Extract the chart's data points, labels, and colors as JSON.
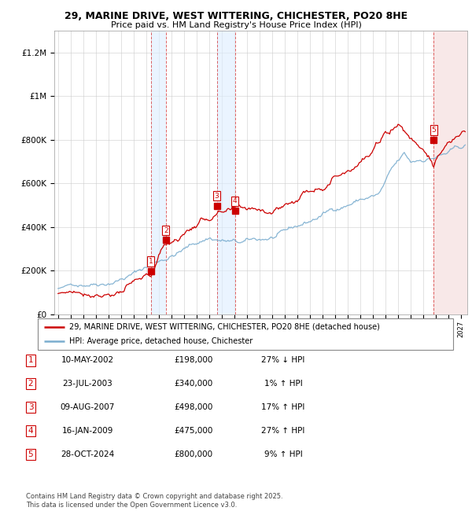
{
  "title1": "29, MARINE DRIVE, WEST WITTERING, CHICHESTER, PO20 8HE",
  "title2": "Price paid vs. HM Land Registry's House Price Index (HPI)",
  "ylabel_ticks": [
    "£0",
    "£200K",
    "£400K",
    "£600K",
    "£800K",
    "£1M",
    "£1.2M"
  ],
  "ytick_vals": [
    0,
    200000,
    400000,
    600000,
    800000,
    1000000,
    1200000
  ],
  "ylim": [
    0,
    1300000
  ],
  "xlim_start": 1994.7,
  "xlim_end": 2027.5,
  "sale_dates": [
    2002.36,
    2003.56,
    2007.61,
    2009.04,
    2024.83
  ],
  "sale_prices": [
    198000,
    340000,
    498000,
    475000,
    800000
  ],
  "sale_labels": [
    "1",
    "2",
    "3",
    "4",
    "5"
  ],
  "legend_line1": "29, MARINE DRIVE, WEST WITTERING, CHICHESTER, PO20 8HE (detached house)",
  "legend_line2": "HPI: Average price, detached house, Chichester",
  "table_data": [
    [
      "1",
      "10-MAY-2002",
      "£198,000",
      "27% ↓ HPI"
    ],
    [
      "2",
      "23-JUL-2003",
      "£340,000",
      "1% ↑ HPI"
    ],
    [
      "3",
      "09-AUG-2007",
      "£498,000",
      "17% ↑ HPI"
    ],
    [
      "4",
      "16-JAN-2009",
      "£475,000",
      "27% ↑ HPI"
    ],
    [
      "5",
      "28-OCT-2024",
      "£800,000",
      "9% ↑ HPI"
    ]
  ],
  "footnote": "Contains HM Land Registry data © Crown copyright and database right 2025.\nThis data is licensed under the Open Government Licence v3.0.",
  "red_color": "#cc0000",
  "blue_color": "#7aadcf",
  "shading_color": "#ddeeff",
  "bg_color": "#f5f5f5"
}
